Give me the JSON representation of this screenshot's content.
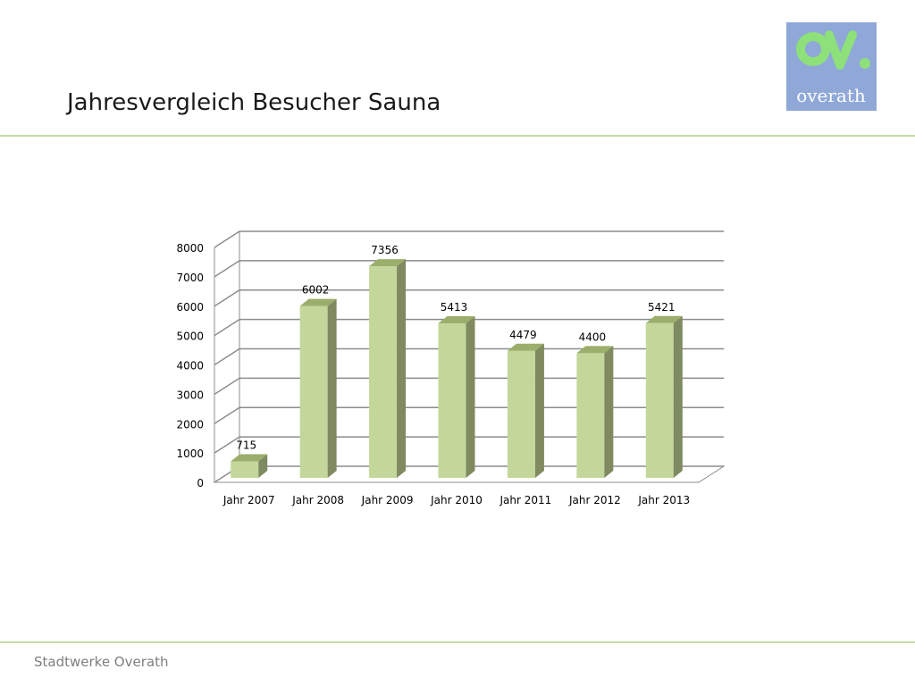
{
  "slide": {
    "title": "Jahresvergleich Besucher Sauna",
    "footer": "Stadtwerke Overath"
  },
  "logo": {
    "text": "overath",
    "background": "#8fa8d8",
    "mark_color": "#8de07a",
    "text_color": "#ffffff"
  },
  "colors": {
    "bar_front": "#c4d79b",
    "bar_side": "#7f8a60",
    "bar_top": "#9bae6b",
    "grid": "#8c8c8c",
    "accent_rule": "#c6dca2"
  },
  "chart_data": {
    "type": "bar",
    "categories": [
      "Jahr 2007",
      "Jahr 2008",
      "Jahr 2009",
      "Jahr 2010",
      "Jahr 2011",
      "Jahr 2012",
      "Jahr 2013"
    ],
    "values": [
      715,
      6002,
      7356,
      5413,
      4479,
      4400,
      5421
    ],
    "data_labels": [
      "715",
      "6002",
      "7356",
      "5413",
      "4479",
      "4400",
      "5421"
    ],
    "yticks": [
      0,
      1000,
      2000,
      3000,
      4000,
      5000,
      6000,
      7000,
      8000
    ],
    "ylim": [
      0,
      8000
    ],
    "title": "",
    "xlabel": "",
    "ylabel": "",
    "grid": true,
    "legend": "none",
    "style": "3d-column"
  }
}
